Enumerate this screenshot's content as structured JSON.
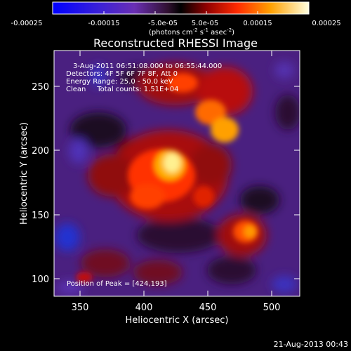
{
  "colorbar": {
    "ticks": [
      "-0.00025",
      "-0.00015",
      "-5.0e-05",
      "5.0e-05",
      "0.00015",
      "0.00025"
    ],
    "unit_base": "(photons cm",
    "unit_exp1": "-2",
    "unit_mid": " s",
    "unit_exp2": "-1",
    "unit_mid2": " asec",
    "unit_exp3": "-2",
    "unit_end": ")",
    "colors": [
      "#0000ff",
      "#6a2fb3",
      "#2a1030",
      "#000000",
      "#b00000",
      "#ff4000",
      "#ffb000",
      "#ffffe0"
    ]
  },
  "plot": {
    "title": "Reconstructed RHESSI Image",
    "xlabel": "Heliocentric X (arcsec)",
    "ylabel": "Heliocentric Y (arcsec)",
    "xticks": [
      "350",
      "400",
      "450",
      "500"
    ],
    "yticks": [
      "250",
      "200",
      "150",
      "100"
    ],
    "info_lines": [
      "3-Aug-2011 06:51:08.000 to 06:55:44.000",
      "Detectors: 4F 5F 6F 7F 8F, Att 0",
      "Energy Range: 25.0 - 50.0 keV",
      "Clean     Total counts: 1.51E+04"
    ],
    "peak_label": "Position of Peak = [424,193]"
  },
  "footer": {
    "timestamp": "21-Aug-2013 00:43"
  }
}
